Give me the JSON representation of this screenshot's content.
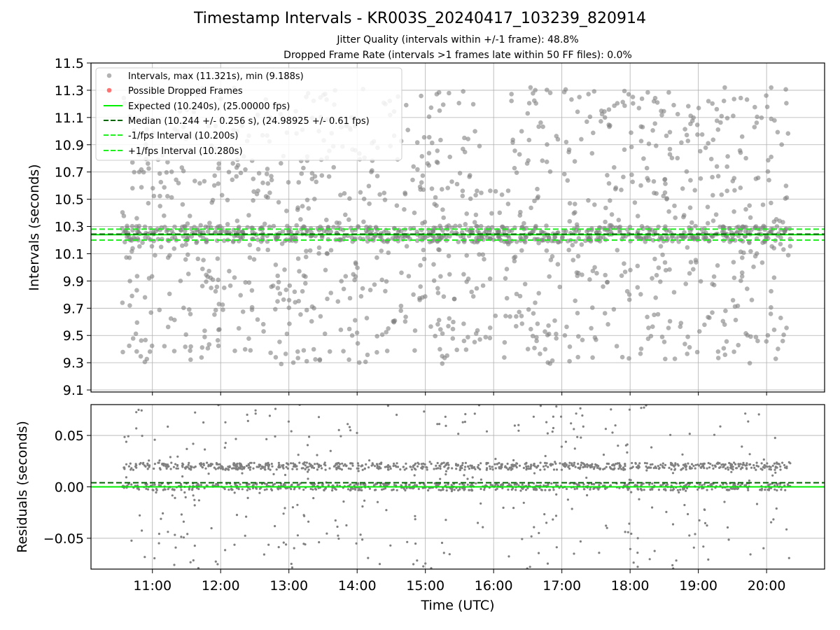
{
  "chart_data": {
    "title": "Timestamp Intervals - KR003S_20240417_103239_820914",
    "subtitle_lines": [
      "Jitter Quality (intervals within +/-1 frame): 48.8%",
      "Dropped Frame Rate (intervals >1 frames late within 50 FF files): 0.0%"
    ],
    "xlabel": "Time (UTC)",
    "xticks": [
      "11:00",
      "12:00",
      "13:00",
      "14:00",
      "15:00",
      "16:00",
      "17:00",
      "18:00",
      "19:00",
      "20:00"
    ],
    "xlim_hours": [
      10.1,
      20.85
    ],
    "grid": true,
    "colors": {
      "points": "#808080",
      "dropped": "#ff5050",
      "expected": "#00ee00",
      "median": "#006400",
      "interval": "#22ee22"
    },
    "panels": [
      {
        "name": "intervals",
        "type": "scatter",
        "ylabel": "Intervals (seconds)",
        "yticks": [
          "9.1",
          "9.3",
          "9.5",
          "9.7",
          "9.9",
          "10.1",
          "10.3",
          "10.5",
          "10.7",
          "10.9",
          "11.1",
          "11.3",
          "11.5"
        ],
        "ylim": [
          9.085,
          11.5
        ],
        "legend_position": "upper-left",
        "legend": [
          "Intervals, max (11.321s), min (9.188s)",
          "Possible Dropped Frames",
          "Expected (10.240s), (25.00000 fps)",
          "Median (10.244 +/- 0.256 s), (24.98925 +/- 0.61 fps)",
          "-1/fps Interval (10.200s)",
          "+1/fps Interval (10.280s)"
        ],
        "expected": 10.24,
        "median": 10.244,
        "lower_interval": 10.2,
        "upper_interval": 10.28,
        "max": 11.321,
        "min": 9.188,
        "median_spread": 0.256,
        "median_fps": 24.98925,
        "fps_spread": 0.61,
        "expected_fps": 25.0,
        "x_range_hours": [
          10.55,
          20.35
        ],
        "approx_point_count": 1700
      },
      {
        "name": "residuals",
        "type": "scatter",
        "ylabel": "Residuals (seconds)",
        "yticks": [
          "−0.05",
          "0.00",
          "0.05"
        ],
        "ylim": [
          -0.08,
          0.08
        ],
        "expected": 0.0,
        "median": 0.004,
        "band_levels": [
          0.02,
          0.0
        ],
        "x_range_hours": [
          10.55,
          20.35
        ],
        "approx_point_count": 1700
      }
    ]
  }
}
